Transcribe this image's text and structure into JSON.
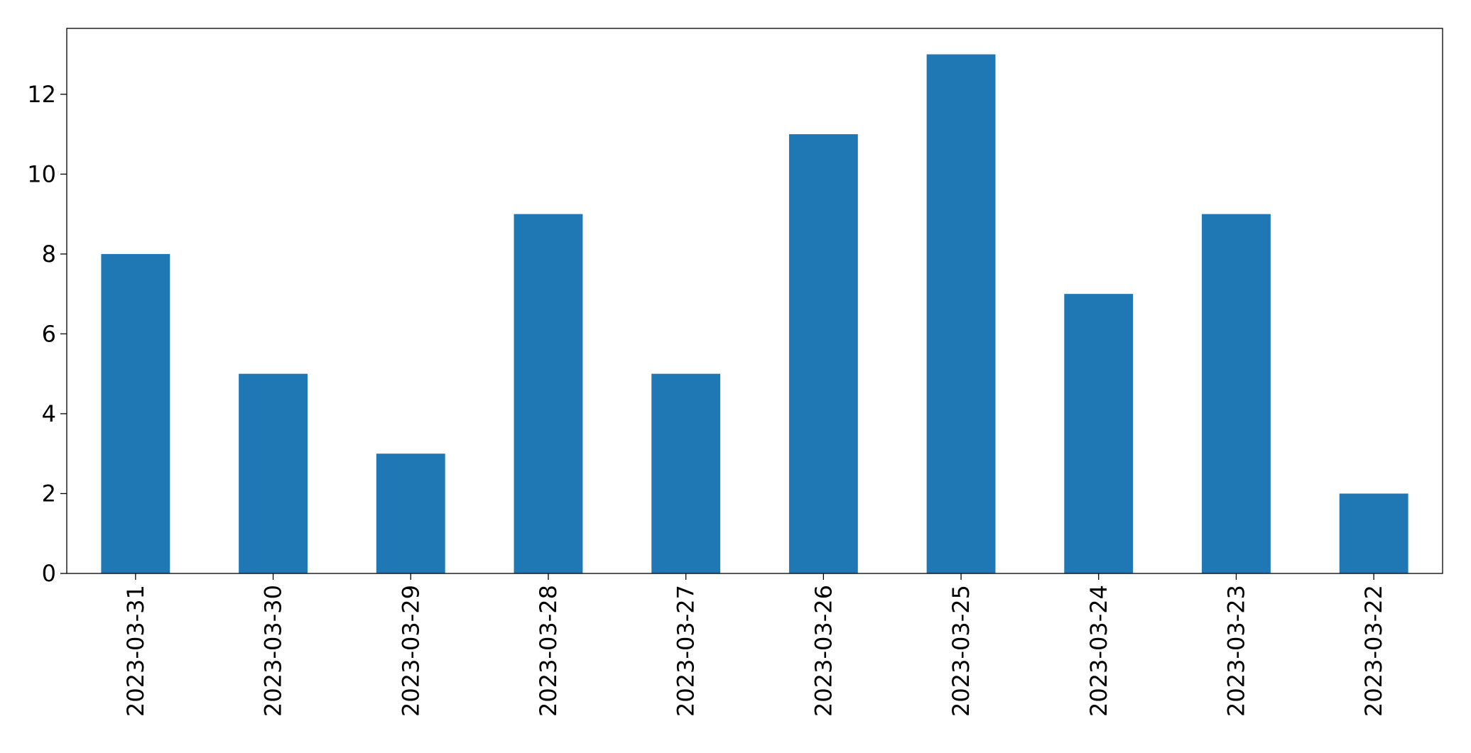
{
  "chart_data": {
    "type": "bar",
    "categories": [
      "2023-03-31",
      "2023-03-30",
      "2023-03-29",
      "2023-03-28",
      "2023-03-27",
      "2023-03-26",
      "2023-03-25",
      "2023-03-24",
      "2023-03-23",
      "2023-03-22"
    ],
    "values": [
      8,
      5,
      3,
      9,
      5,
      11,
      13,
      7,
      9,
      2
    ],
    "color": "#1f77b4",
    "ylim": [
      0,
      13.65
    ],
    "yticks": [
      0,
      2,
      4,
      6,
      8,
      10,
      12
    ],
    "grid": false
  }
}
